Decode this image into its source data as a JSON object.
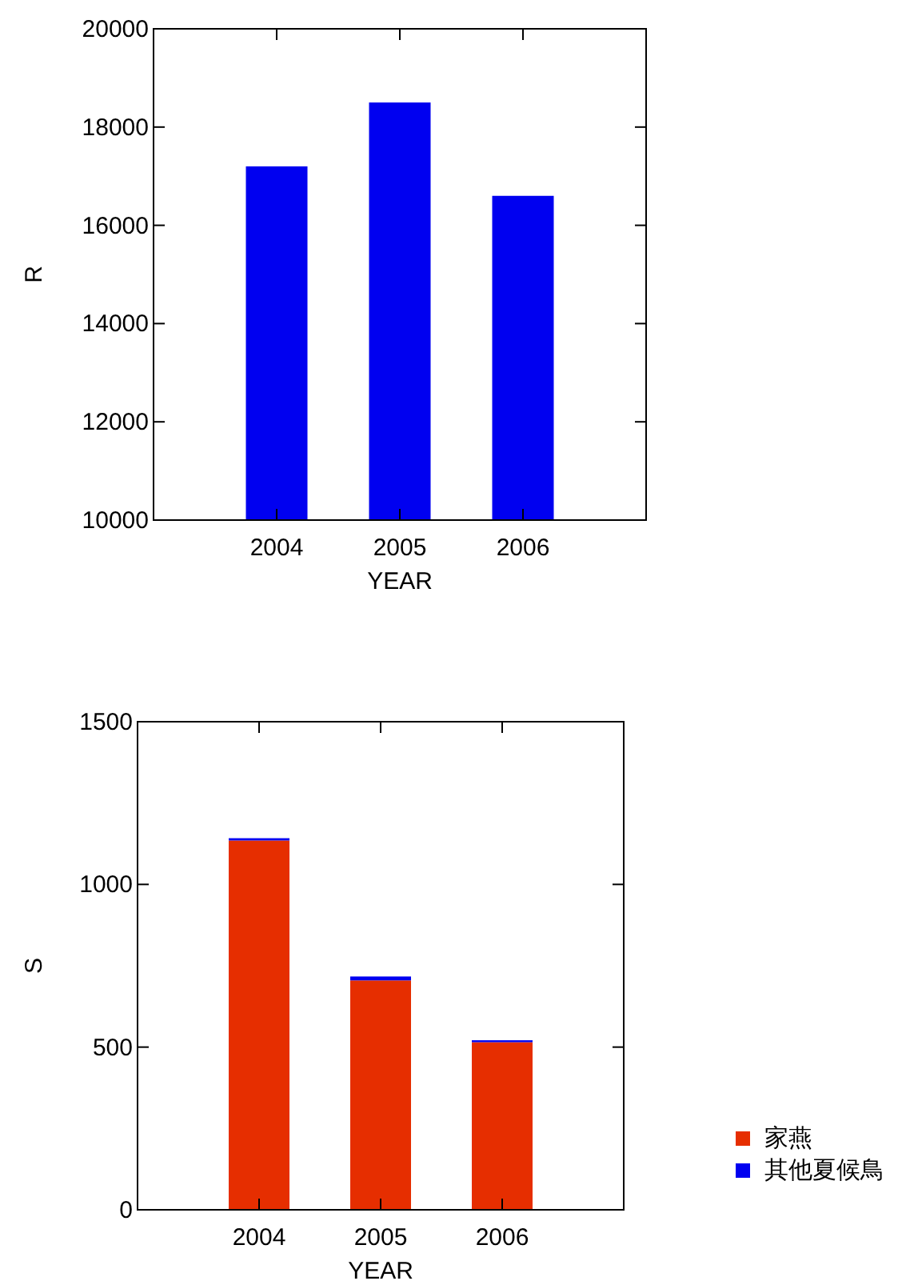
{
  "chart_data": [
    {
      "type": "bar",
      "xlabel": "YEAR",
      "ylabel": "R",
      "categories": [
        "2004",
        "2005",
        "2006"
      ],
      "ylim": [
        10000,
        20000
      ],
      "yticks": [
        10000,
        12000,
        14000,
        16000,
        18000,
        20000
      ],
      "series": [
        {
          "color": "#0000f0",
          "values": [
            17200,
            18500,
            16600
          ]
        }
      ]
    },
    {
      "type": "bar",
      "xlabel": "YEAR",
      "ylabel": "S",
      "categories": [
        "2004",
        "2005",
        "2006"
      ],
      "ylim": [
        0,
        1500
      ],
      "yticks": [
        0,
        500,
        1000,
        1500
      ],
      "stacked": true,
      "legend": "bottom right",
      "series": [
        {
          "name": "家燕",
          "color": "#e62e00",
          "values": [
            1135,
            705,
            515
          ]
        },
        {
          "name": "其他夏候鳥",
          "color": "#0000f0",
          "values": [
            7,
            12,
            6
          ]
        }
      ]
    }
  ]
}
